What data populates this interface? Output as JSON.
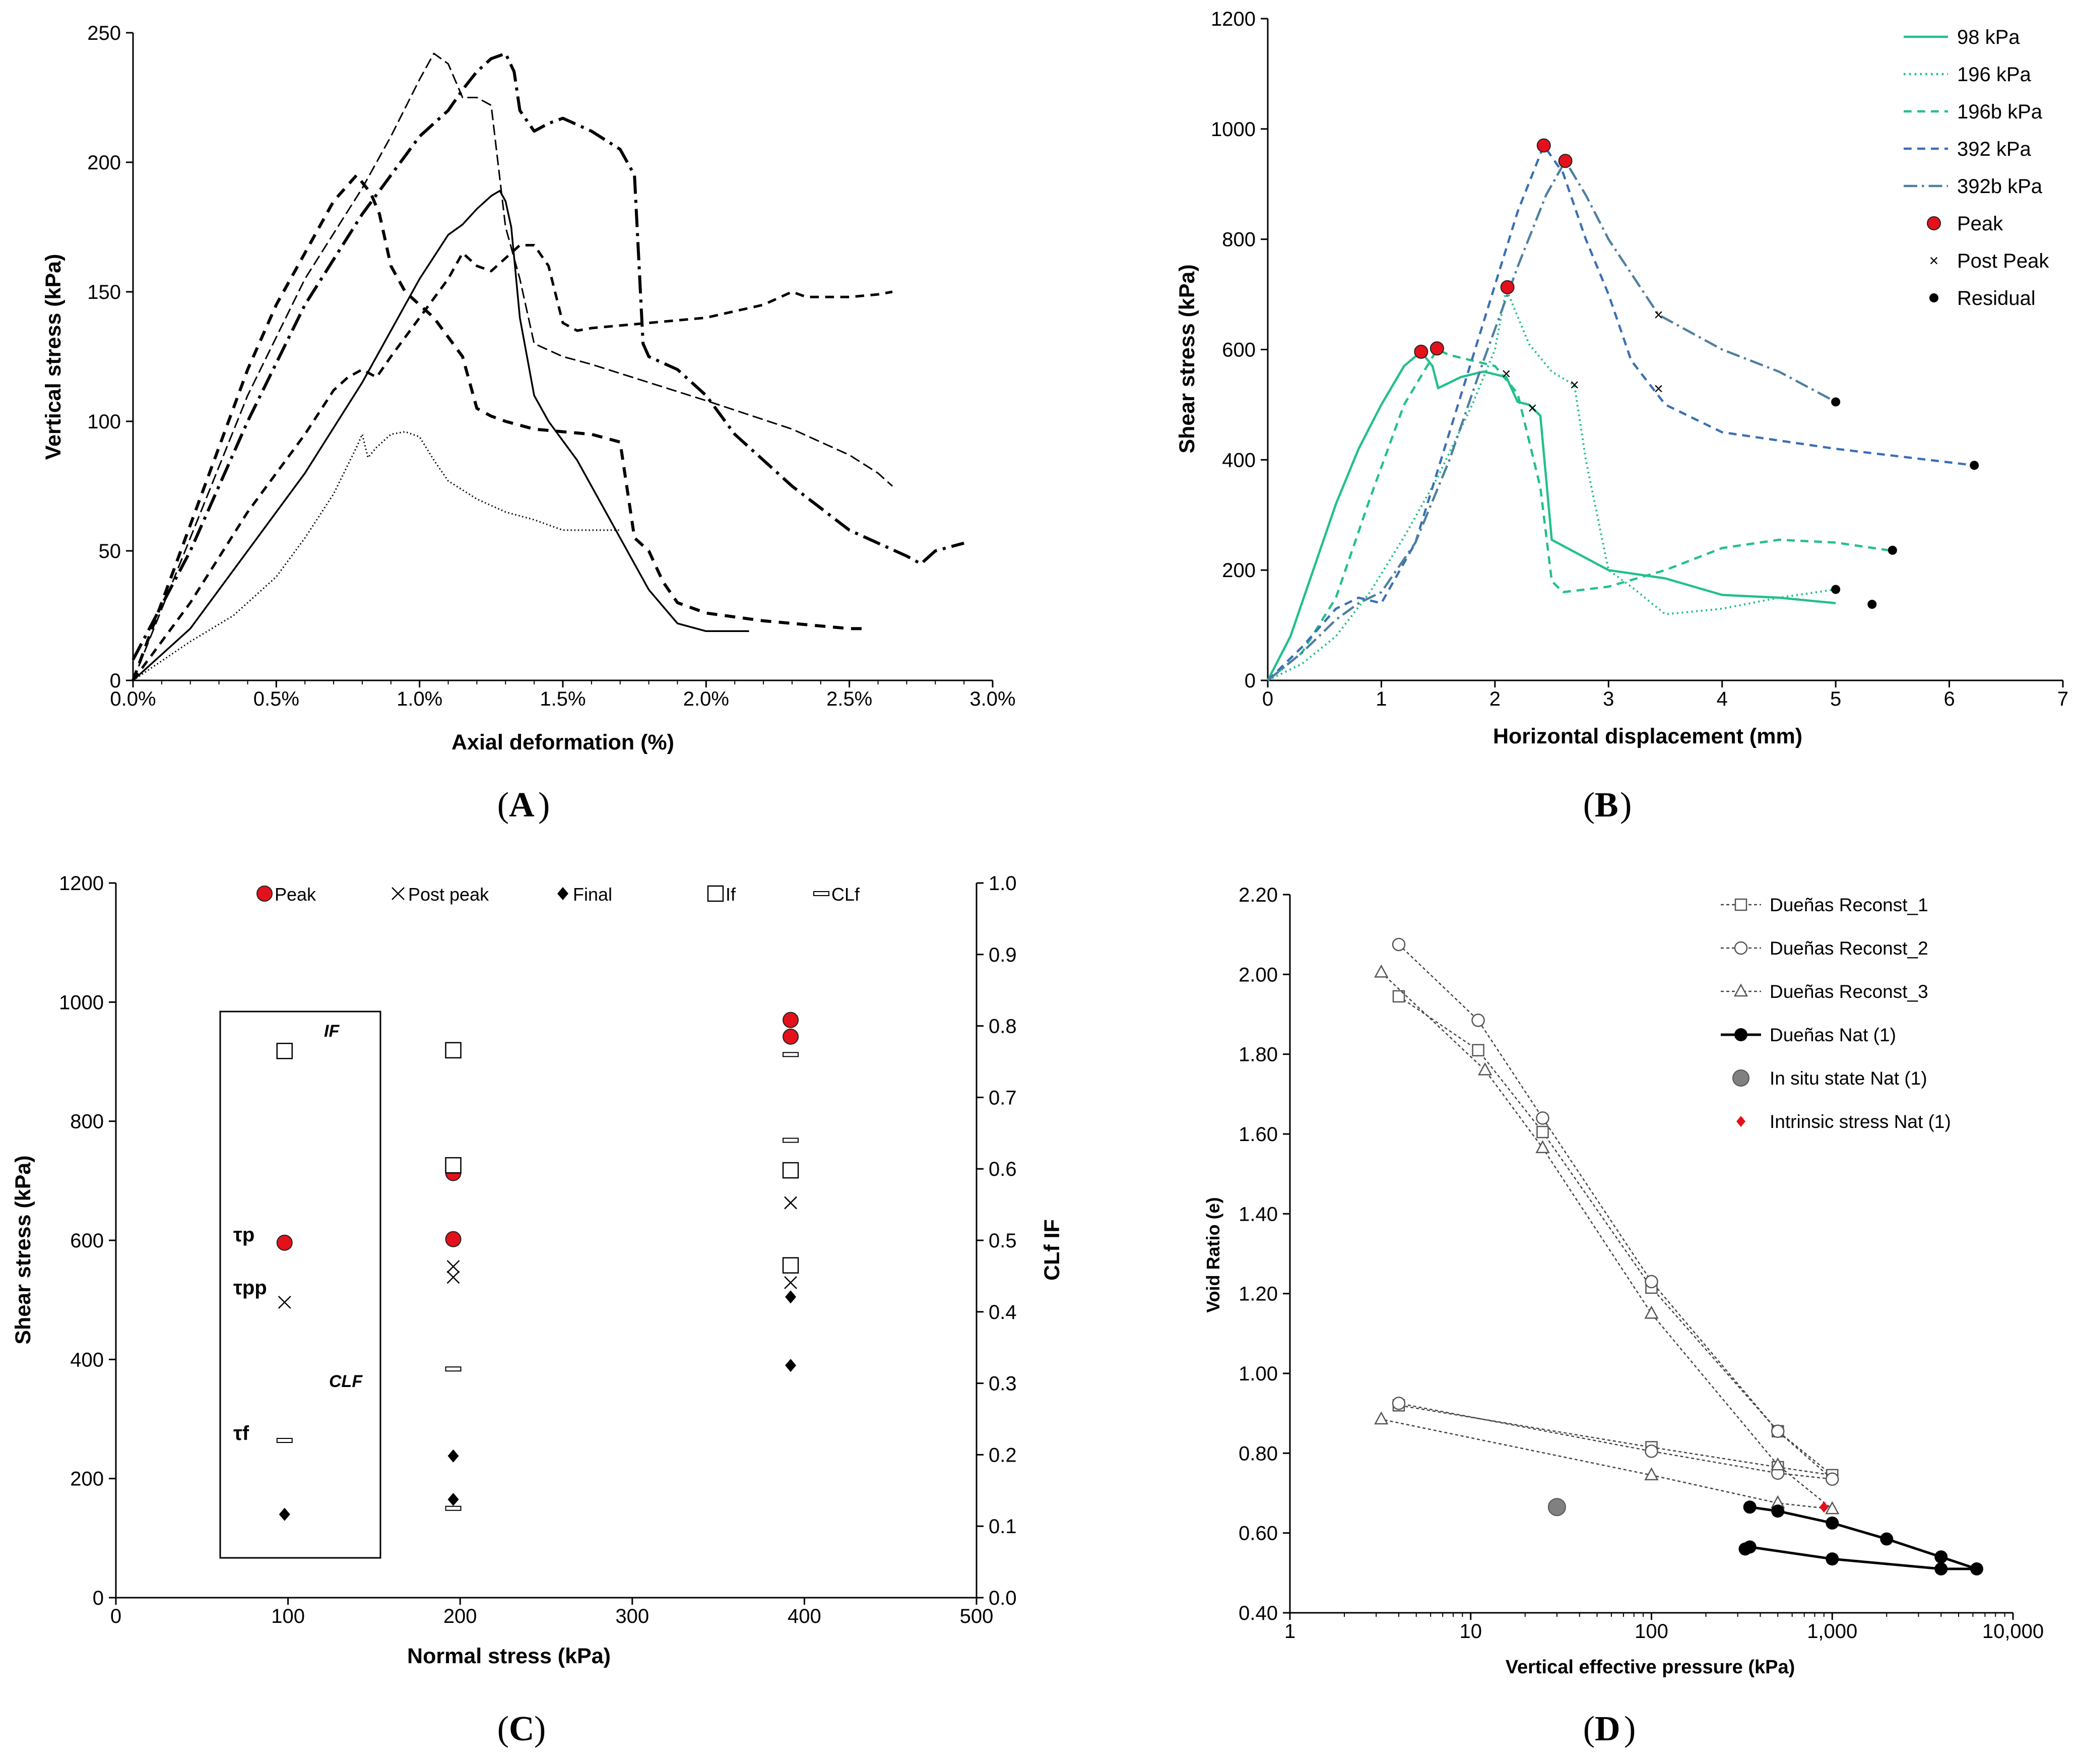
{
  "chart_data": [
    {
      "panel": "A",
      "type": "line",
      "xlabel": "Axial deformation (%)",
      "ylabel": "Vertical stress (kPa)",
      "xlim": [
        0,
        3.0
      ],
      "ylim": [
        0,
        250
      ],
      "xticks": [
        0,
        0.5,
        1.0,
        1.5,
        2.0,
        2.5,
        3.0
      ],
      "xtick_labels": [
        "0.0%",
        "0.5%",
        "1.0%",
        "1.5%",
        "2.0%",
        "2.5%",
        "3.0%"
      ],
      "yticks": [
        0,
        50,
        100,
        150,
        200,
        250
      ],
      "ytick_labels": [
        "0",
        "50",
        "100",
        "150",
        "200",
        "250"
      ],
      "series": [
        {
          "name": "curve-dotted",
          "style": "dotted",
          "width": 3,
          "x": [
            0,
            0.2,
            0.35,
            0.5,
            0.6,
            0.7,
            0.78,
            0.8,
            0.82,
            0.85,
            0.9,
            0.95,
            1.0,
            1.05,
            1.1,
            1.2,
            1.3,
            1.4,
            1.5,
            1.6,
            1.7
          ],
          "y": [
            0,
            15,
            25,
            40,
            55,
            72,
            90,
            95,
            86,
            90,
            95,
            96,
            94,
            85,
            77,
            70,
            65,
            62,
            58,
            58,
            58
          ]
        },
        {
          "name": "curve-solid",
          "style": "solid",
          "width": 3.5,
          "x": [
            0,
            0.2,
            0.4,
            0.6,
            0.8,
            0.9,
            1.0,
            1.1,
            1.15,
            1.2,
            1.25,
            1.28,
            1.3,
            1.32,
            1.35,
            1.4,
            1.45,
            1.55,
            1.7,
            1.8,
            1.9,
            2.0,
            2.15
          ],
          "y": [
            0,
            20,
            50,
            80,
            115,
            135,
            155,
            172,
            176,
            182,
            187,
            189,
            185,
            175,
            140,
            110,
            100,
            85,
            55,
            35,
            22,
            19,
            19
          ]
        },
        {
          "name": "curve-short-dash",
          "style": "dashed",
          "width": 6,
          "x": [
            0,
            0.1,
            0.2,
            0.3,
            0.4,
            0.5,
            0.6,
            0.7,
            0.78,
            0.83,
            0.86,
            0.9,
            0.95,
            1.05,
            1.15,
            1.2,
            1.25,
            1.3,
            1.4,
            1.5,
            1.6,
            1.7,
            1.75,
            1.8,
            1.85,
            1.9,
            2.0,
            2.2,
            2.5,
            2.55
          ],
          "y": [
            0,
            30,
            60,
            90,
            120,
            145,
            165,
            185,
            195,
            188,
            180,
            160,
            150,
            140,
            125,
            105,
            102,
            100,
            97,
            96,
            95,
            92,
            55,
            50,
            38,
            30,
            26,
            23,
            20,
            20
          ]
        },
        {
          "name": "curve-med-dash",
          "style": "dashed",
          "width": 5,
          "x": [
            0,
            0.2,
            0.4,
            0.6,
            0.7,
            0.75,
            0.8,
            0.85,
            0.9,
            1.0,
            1.1,
            1.15,
            1.2,
            1.25,
            1.3,
            1.35,
            1.4,
            1.45,
            1.5,
            1.55,
            1.6,
            1.8,
            2.0,
            2.2,
            2.3,
            2.35,
            2.5,
            2.6,
            2.65
          ],
          "y": [
            0,
            30,
            65,
            95,
            112,
            117,
            120,
            117,
            125,
            140,
            155,
            165,
            160,
            158,
            163,
            168,
            168,
            160,
            138,
            135,
            136,
            138,
            140,
            145,
            150,
            148,
            148,
            149,
            150
          ]
        },
        {
          "name": "curve-long-dash",
          "style": "longdash",
          "width": 3,
          "x": [
            0,
            0.2,
            0.4,
            0.6,
            0.8,
            0.9,
            1.0,
            1.05,
            1.1,
            1.15,
            1.2,
            1.25,
            1.3,
            1.35,
            1.4,
            1.5,
            1.6,
            1.8,
            2.0,
            2.3,
            2.5,
            2.6,
            2.65
          ],
          "y": [
            0,
            55,
            110,
            155,
            190,
            210,
            232,
            242,
            238,
            225,
            225,
            222,
            175,
            155,
            130,
            125,
            122,
            115,
            108,
            97,
            87,
            80,
            75
          ]
        },
        {
          "name": "curve-dash-dot",
          "style": "dashdot",
          "width": 6,
          "x": [
            0,
            0.2,
            0.4,
            0.6,
            0.8,
            0.9,
            1.0,
            1.1,
            1.15,
            1.2,
            1.25,
            1.3,
            1.33,
            1.35,
            1.4,
            1.45,
            1.5,
            1.6,
            1.7,
            1.75,
            1.78,
            1.8,
            1.9,
            2.0,
            2.1,
            2.3,
            2.5,
            2.7,
            2.75,
            2.8,
            2.9
          ],
          "y": [
            8,
            50,
            100,
            145,
            180,
            195,
            210,
            220,
            228,
            235,
            240,
            242,
            235,
            220,
            212,
            215,
            217,
            212,
            205,
            195,
            130,
            125,
            120,
            110,
            95,
            75,
            58,
            48,
            45,
            50,
            53
          ]
        }
      ]
    },
    {
      "panel": "B",
      "type": "line",
      "xlabel": "Horizontal displacement (mm)",
      "ylabel": "Shear stress (kPa)",
      "xlim": [
        0,
        7
      ],
      "ylim": [
        0,
        1200
      ],
      "xticks": [
        0,
        1,
        2,
        3,
        4,
        5,
        6,
        7
      ],
      "xtick_labels": [
        "0",
        "1",
        "2",
        "3",
        "4",
        "5",
        "6",
        "7"
      ],
      "yticks": [
        0,
        200,
        400,
        600,
        800,
        1000,
        1200
      ],
      "ytick_labels": [
        "0",
        "200",
        "400",
        "600",
        "800",
        "1000",
        "1200"
      ],
      "legend": [
        "98 kPa",
        "196 kPa",
        "196b kPa",
        "392 kPa",
        "392b kPa",
        "Peak",
        "Post Peak",
        "Residual"
      ],
      "series": [
        {
          "name": "98 kPa",
          "style": "solid",
          "color": "#22c08a",
          "x": [
            0,
            0.2,
            0.4,
            0.6,
            0.8,
            1.0,
            1.2,
            1.35,
            1.45,
            1.5,
            1.6,
            1.7,
            1.8,
            1.9,
            2.0,
            2.1,
            2.2,
            2.3,
            2.4,
            2.5,
            3.0,
            3.5,
            4.0,
            4.5,
            5.0
          ],
          "y": [
            0,
            80,
            200,
            320,
            420,
            500,
            570,
            596,
            570,
            530,
            540,
            550,
            555,
            560,
            555,
            550,
            505,
            500,
            480,
            255,
            200,
            185,
            155,
            150,
            140
          ]
        },
        {
          "name": "196 kPa",
          "style": "dotted",
          "color": "#22c08a",
          "x": [
            0,
            0.3,
            0.6,
            0.9,
            1.2,
            1.5,
            1.8,
            2.0,
            2.1,
            2.2,
            2.3,
            2.5,
            2.7,
            2.8,
            3.0,
            3.2,
            3.5,
            4.0,
            4.5,
            5.0
          ],
          "y": [
            0,
            30,
            80,
            160,
            260,
            370,
            500,
            600,
            710,
            660,
            610,
            560,
            535,
            400,
            200,
            170,
            120,
            130,
            150,
            165
          ]
        },
        {
          "name": "196b kPa",
          "style": "dashed",
          "color": "#22c08a",
          "x": [
            0,
            0.3,
            0.6,
            0.9,
            1.2,
            1.49,
            1.6,
            1.8,
            2.0,
            2.2,
            2.4,
            2.5,
            2.6,
            3.0,
            3.5,
            4.0,
            4.5,
            5.0,
            5.5
          ],
          "y": [
            0,
            50,
            150,
            330,
            500,
            600,
            590,
            580,
            570,
            520,
            350,
            180,
            160,
            170,
            200,
            240,
            255,
            250,
            235
          ]
        },
        {
          "name": "392 kPa",
          "style": "dashed",
          "color": "#3a6fb5",
          "x": [
            0,
            0.3,
            0.6,
            0.8,
            1.0,
            1.3,
            1.6,
            1.9,
            2.2,
            2.43,
            2.6,
            2.8,
            3.0,
            3.2,
            3.5,
            4.0,
            5.0,
            6.22
          ],
          "y": [
            0,
            60,
            130,
            150,
            140,
            250,
            450,
            650,
            850,
            970,
            920,
            800,
            700,
            580,
            500,
            450,
            420,
            390
          ]
        },
        {
          "name": "392b kPa",
          "style": "dashdot",
          "color": "#4f7f9f",
          "x": [
            0,
            0.3,
            0.6,
            0.8,
            1.0,
            1.3,
            1.6,
            1.9,
            2.2,
            2.45,
            2.62,
            2.8,
            3.0,
            3.44,
            4.0,
            4.5,
            5.0
          ],
          "y": [
            0,
            50,
            110,
            140,
            160,
            250,
            400,
            580,
            750,
            880,
            942,
            880,
            800,
            663,
            600,
            560,
            505
          ]
        }
      ],
      "markers": {
        "peak": [
          [
            1.35,
            596
          ],
          [
            1.49,
            602
          ],
          [
            2.11,
            713
          ],
          [
            2.43,
            970
          ],
          [
            2.62,
            942
          ]
        ],
        "post_peak": [
          [
            2.1,
            556
          ],
          [
            2.33,
            494
          ],
          [
            2.7,
            536
          ],
          [
            3.44,
            663
          ],
          [
            3.44,
            529
          ]
        ],
        "residual": [
          [
            5.0,
            165
          ],
          [
            5.32,
            138
          ],
          [
            5.5,
            236
          ],
          [
            6.22,
            390
          ],
          [
            5.0,
            505
          ]
        ]
      }
    },
    {
      "panel": "C",
      "type": "scatter",
      "xlabel": "Normal stress (kPa)",
      "ylabel": "Shear stress (kPa)",
      "y2label": "CLf IF",
      "xlim": [
        0,
        500
      ],
      "ylim": [
        0,
        1200
      ],
      "y2lim": [
        0,
        1.0
      ],
      "xticks": [
        0,
        100,
        200,
        300,
        400,
        500
      ],
      "xtick_labels": [
        "0",
        "100",
        "200",
        "300",
        "400",
        "500"
      ],
      "yticks": [
        0,
        200,
        400,
        600,
        800,
        1000,
        1200
      ],
      "ytick_labels": [
        "0",
        "200",
        "400",
        "600",
        "800",
        "1000",
        "1200"
      ],
      "y2ticks": [
        0,
        0.1,
        0.2,
        0.3,
        0.4,
        0.5,
        0.6,
        0.7,
        0.8,
        0.9,
        1.0
      ],
      "y2tick_labels": [
        "0.0",
        "0.1",
        "0.2",
        "0.3",
        "0.4",
        "0.5",
        "0.6",
        "0.7",
        "0.8",
        "0.9",
        "1.0"
      ],
      "legend": [
        "Peak",
        "Post peak",
        "Final",
        "If",
        "CLf"
      ],
      "annotations": [
        "IF",
        "τp",
        "τpp",
        "CLF",
        "τf"
      ],
      "series": [
        {
          "name": "Peak",
          "axis": "left",
          "points": [
            [
              98,
              596
            ],
            [
              196,
              713
            ],
            [
              196,
              602
            ],
            [
              392,
              970
            ],
            [
              392,
              942
            ]
          ]
        },
        {
          "name": "Post peak",
          "axis": "left",
          "points": [
            [
              98,
              496
            ],
            [
              196,
              556
            ],
            [
              196,
              538
            ],
            [
              392,
              663
            ],
            [
              392,
              529
            ]
          ]
        },
        {
          "name": "Final",
          "axis": "left",
          "points": [
            [
              98,
              140
            ],
            [
              196,
              238
            ],
            [
              196,
              165
            ],
            [
              392,
              505
            ],
            [
              392,
              390
            ]
          ]
        },
        {
          "name": "If",
          "axis": "right",
          "points": [
            [
              98,
              0.765
            ],
            [
              196,
              0.766
            ],
            [
              196,
              0.605
            ],
            [
              392,
              0.598
            ],
            [
              392,
              0.465
            ]
          ]
        },
        {
          "name": "CLf",
          "axis": "right",
          "points": [
            [
              98,
              0.22
            ],
            [
              196,
              0.32
            ],
            [
              196,
              0.125
            ],
            [
              392,
              0.76
            ],
            [
              392,
              0.64
            ]
          ]
        }
      ]
    },
    {
      "panel": "D",
      "type": "line",
      "xscale": "log",
      "xlabel": "Vertical effective pressure (kPa)",
      "ylabel": "Void Ratio (e)",
      "xlim": [
        1,
        10000
      ],
      "ylim": [
        0.4,
        2.2
      ],
      "xticks": [
        1,
        10,
        100,
        1000,
        10000
      ],
      "xtick_labels": [
        "1",
        "10",
        "100",
        "1,000",
        "10,000"
      ],
      "yticks": [
        0.4,
        0.6,
        0.8,
        1.0,
        1.2,
        1.4,
        1.6,
        1.8,
        2.0,
        2.2
      ],
      "ytick_labels": [
        "0.40",
        "0.60",
        "0.80",
        "1.00",
        "1.20",
        "1.40",
        "1.60",
        "1.80",
        "2.00",
        "2.20"
      ],
      "legend": [
        "Dueñas Reconst_1",
        "Dueñas Reconst_2",
        "Dueñas Reconst_3",
        "Dueñas Nat (1)",
        "In situ state Nat (1)",
        "Intrinsic stress Nat (1)"
      ],
      "series": [
        {
          "name": "Dueñas Reconst_1",
          "marker": "square",
          "x": [
            4,
            11,
            25,
            100,
            500,
            1000,
            500,
            100,
            4
          ],
          "y": [
            1.945,
            1.81,
            1.605,
            1.215,
            0.855,
            0.745,
            0.765,
            0.815,
            0.92
          ]
        },
        {
          "name": "Dueñas Reconst_2",
          "marker": "circle",
          "x": [
            4,
            11,
            25,
            100,
            500,
            1000,
            500,
            100,
            4
          ],
          "y": [
            2.075,
            1.885,
            1.64,
            1.23,
            0.855,
            0.735,
            0.75,
            0.805,
            0.925
          ]
        },
        {
          "name": "Dueñas Reconst_3",
          "marker": "triangle",
          "x": [
            3.2,
            12,
            25,
            100,
            500,
            1000,
            500,
            100,
            3.2
          ],
          "y": [
            2.005,
            1.76,
            1.565,
            1.15,
            0.77,
            0.66,
            0.675,
            0.745,
            0.885
          ]
        },
        {
          "name": "Dueñas Nat (1)",
          "marker": "filled-circle",
          "x": [
            350,
            500,
            1000,
            2000,
            4000,
            6300,
            4000,
            1000,
            350,
            330
          ],
          "y": [
            0.665,
            0.655,
            0.625,
            0.585,
            0.54,
            0.51,
            0.51,
            0.535,
            0.565,
            0.56
          ]
        }
      ],
      "points": {
        "in_situ": [
          [
            30,
            0.665
          ]
        ],
        "intrinsic": [
          [
            900,
            0.665
          ]
        ]
      }
    }
  ],
  "captions": [
    "A",
    "B",
    "C",
    "D"
  ]
}
